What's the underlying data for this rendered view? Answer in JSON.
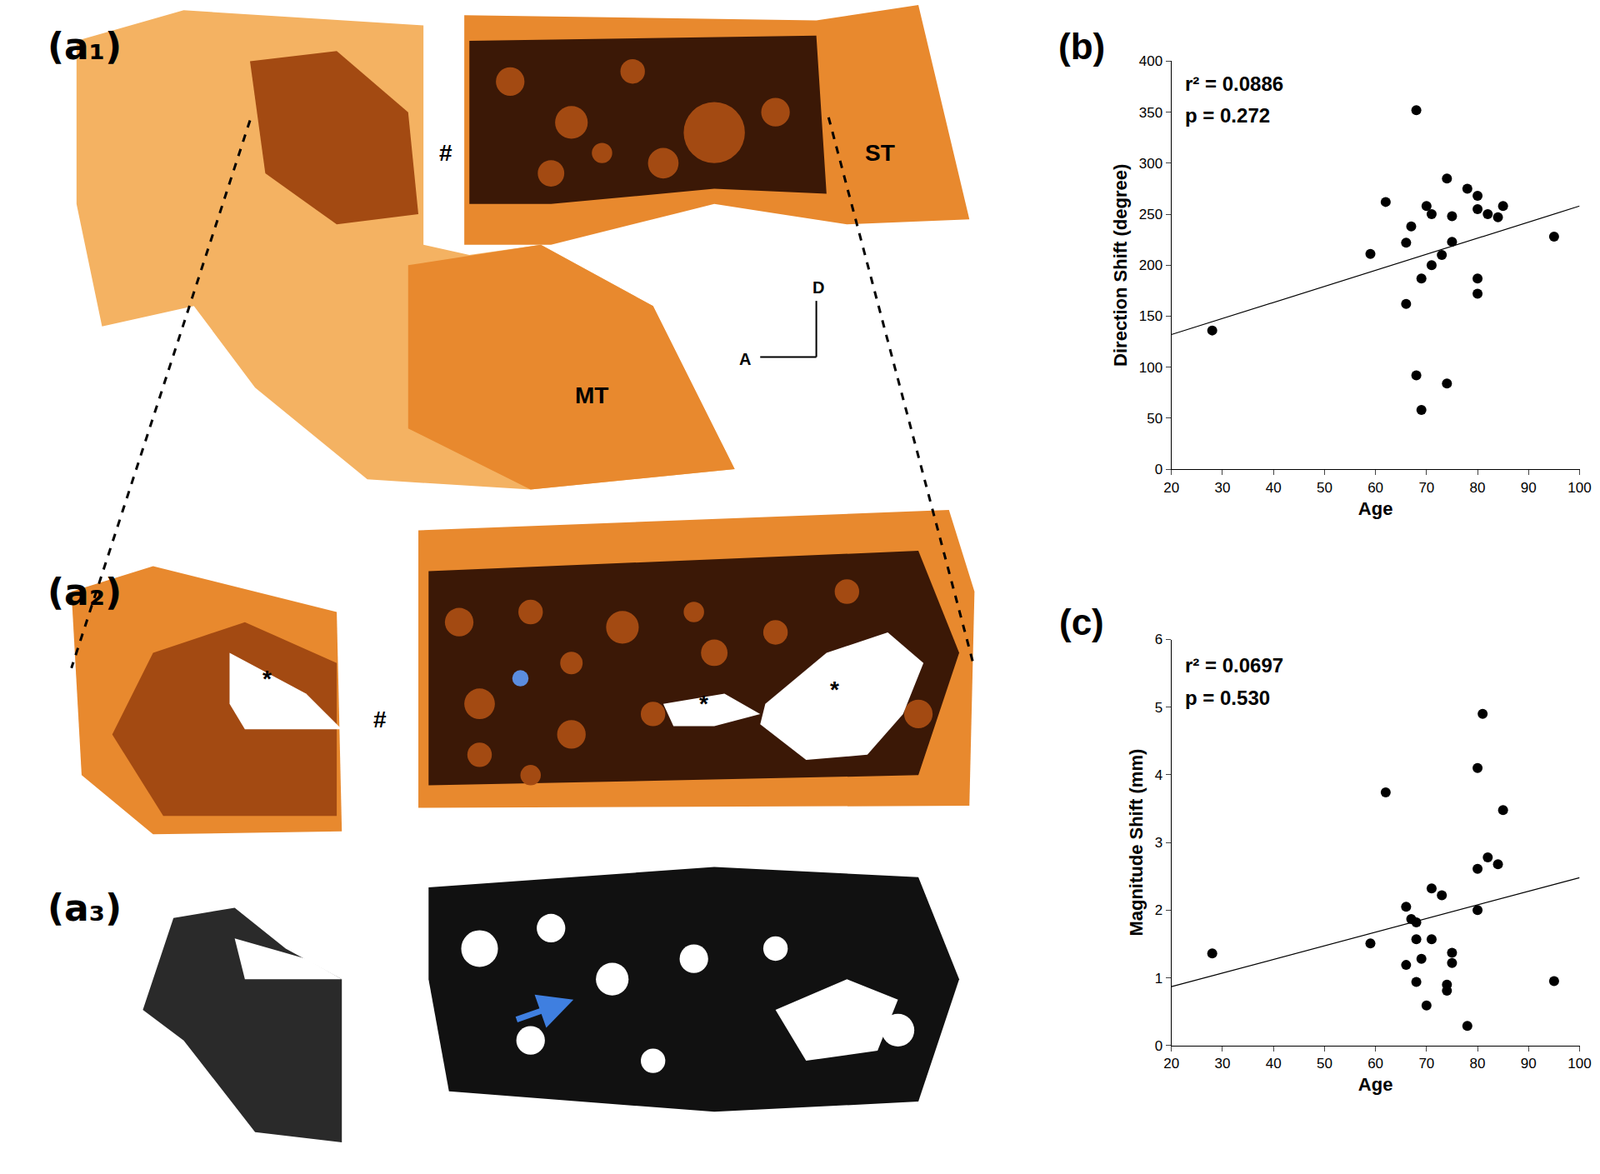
{
  "chart_data": [
    {
      "type": "scatter",
      "title": "(b)",
      "x_label": "Age",
      "y_label": "Direction Shift (degree)",
      "annotations": [
        "r² = 0.0886",
        "p = 0.272"
      ],
      "x": [
        28,
        59,
        62,
        68,
        66,
        67,
        66,
        68,
        69,
        69,
        70,
        71,
        71,
        73,
        74,
        75,
        75,
        74,
        78,
        80,
        80,
        80,
        80,
        82,
        84,
        85,
        95
      ],
      "values": [
        136,
        211,
        262,
        352,
        222,
        238,
        162,
        92,
        58,
        187,
        258,
        200,
        250,
        210,
        285,
        223,
        248,
        84,
        275,
        268,
        187,
        172,
        255,
        250,
        247,
        258,
        228
      ],
      "fit_line": {
        "x": [
          20,
          100
        ],
        "y": [
          132,
          258
        ]
      },
      "color": "#000000",
      "marker": "circle",
      "xlim": [
        20,
        100
      ],
      "xticks": [
        20,
        30,
        40,
        50,
        60,
        70,
        80,
        90,
        100
      ],
      "ylim": [
        0,
        400
      ],
      "yticks": [
        0,
        50,
        100,
        150,
        200,
        250,
        300,
        350,
        400
      ],
      "grid": false
    },
    {
      "type": "scatter",
      "title": "(c)",
      "x_label": "Age",
      "y_label": "Magnitude Shift (mm)",
      "annotations": [
        "r² = 0.0697",
        "p = 0.530"
      ],
      "x": [
        28,
        59,
        62,
        66,
        66,
        67,
        68,
        68,
        68,
        69,
        70,
        71,
        71,
        73,
        75,
        75,
        74,
        74,
        78,
        80,
        80,
        80,
        81,
        82,
        84,
        85,
        95
      ],
      "values": [
        1.36,
        1.51,
        3.74,
        2.05,
        1.19,
        1.87,
        1.82,
        0.94,
        1.57,
        1.28,
        0.59,
        2.32,
        1.57,
        2.22,
        1.37,
        1.22,
        0.9,
        0.81,
        0.29,
        2.0,
        2.61,
        4.1,
        4.9,
        2.78,
        2.68,
        3.48,
        0.95
      ],
      "fit_line": {
        "x": [
          20,
          100
        ],
        "y": [
          0.87,
          2.48
        ]
      },
      "color": "#000000",
      "marker": "circle",
      "xlim": [
        20,
        100
      ],
      "xticks": [
        20,
        30,
        40,
        50,
        60,
        70,
        80,
        90,
        100
      ],
      "ylim": [
        0,
        6
      ],
      "yticks": [
        0,
        1,
        2,
        3,
        4,
        5,
        6
      ],
      "grid": false
    }
  ],
  "image_panels": {
    "a1": {
      "label": "(a₁)",
      "texts": [
        "#",
        "ST",
        "MT"
      ],
      "orientation": [
        "D",
        "A"
      ]
    },
    "a2": {
      "label": "(a₂)",
      "texts": [
        "*",
        "#",
        "*",
        "*"
      ]
    },
    "a3": {
      "label": "(a₃)"
    }
  }
}
